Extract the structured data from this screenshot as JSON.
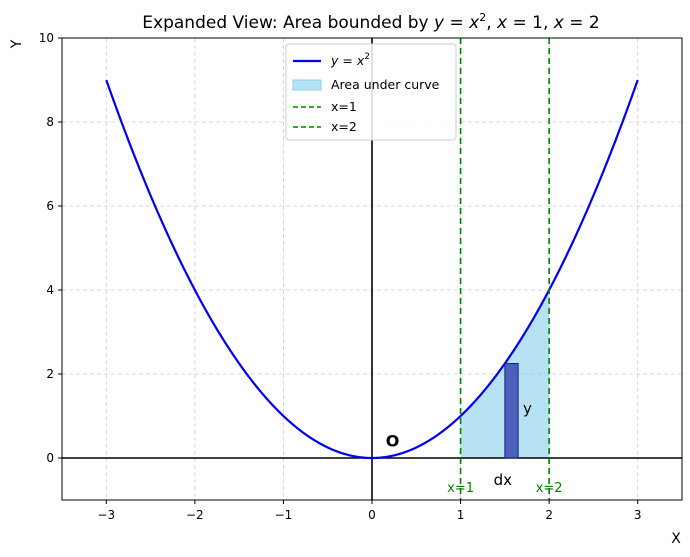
{
  "chart_data": {
    "type": "line",
    "title": {
      "prefix": "Expanded View: Area bounded by ",
      "math_y": "y",
      "math_eq": " = ",
      "math_x": "x",
      "math_sup": "2",
      "sep1": ", ",
      "x1_var": "x",
      "x1_eq": " = 1",
      "sep2": ", ",
      "x2_var": "x",
      "x2_eq": " = 2"
    },
    "xlabel": "X",
    "ylabel": "Y",
    "xlim": [
      -3.5,
      3.5
    ],
    "ylim": [
      -1,
      10
    ],
    "xticks": [
      -3,
      -2,
      -1,
      0,
      1,
      2,
      3
    ],
    "yticks": [
      0,
      2,
      4,
      6,
      8,
      10
    ],
    "grid": true,
    "curve": {
      "function": "x^2",
      "x_range": [
        -3,
        3
      ],
      "color": "#0000ee",
      "legend_var_y": "y",
      "legend_eq": " = ",
      "legend_var_x": "x",
      "legend_sup": "2"
    },
    "area": {
      "x_range": [
        1,
        2
      ],
      "color": "#87ceeb",
      "legend": "Area under curve"
    },
    "vlines": [
      {
        "x": 1,
        "label": "x=1",
        "legend": "x=1",
        "color": "#008000"
      },
      {
        "x": 2,
        "label": "x=2",
        "legend": "x=2",
        "color": "#008000"
      }
    ],
    "strip": {
      "x_start": 1.5,
      "x_end": 1.65,
      "height": 2.25,
      "color": "#3f51b5"
    },
    "annotations": {
      "origin": {
        "text": "O",
        "x": 0.2,
        "y": 0.3
      },
      "dx": {
        "text": "dx",
        "x": 1.5,
        "y": -0.5
      },
      "y": {
        "text": "y",
        "x": 1.8,
        "y": 1.2
      }
    },
    "legend_placement": "upper-center"
  }
}
